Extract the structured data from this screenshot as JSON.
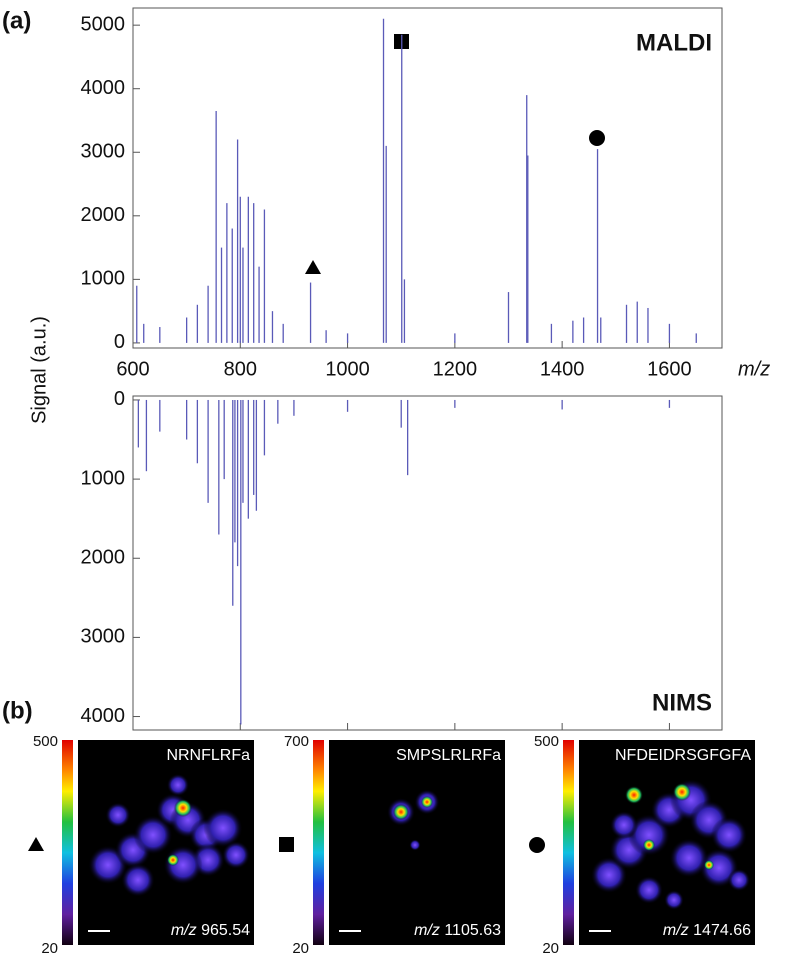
{
  "chart_data": [
    {
      "type": "spectrum",
      "title": "MALDI",
      "x_label": "m/z",
      "color": "#5a5ab8",
      "x": [
        607,
        620,
        650,
        700,
        720,
        740,
        755,
        765,
        775,
        785,
        795,
        800,
        805,
        815,
        825,
        835,
        845,
        860,
        880,
        931,
        960,
        1000,
        1067,
        1072,
        1101,
        1106,
        1200,
        1300,
        1334,
        1336,
        1380,
        1420,
        1440,
        1466,
        1472,
        1520,
        1540,
        1560,
        1600,
        1650
      ],
      "values": [
        900,
        300,
        250,
        400,
        600,
        900,
        3650,
        1500,
        2200,
        1800,
        3200,
        2300,
        1500,
        2300,
        2200,
        1200,
        2100,
        500,
        300,
        950,
        200,
        150,
        5100,
        3100,
        4850,
        1000,
        150,
        800,
        3900,
        2950,
        300,
        350,
        400,
        3050,
        400,
        600,
        650,
        550,
        300,
        150
      ],
      "xlim": [
        600,
        1698
      ],
      "xticks": [
        600,
        800,
        1000,
        1200,
        1400,
        1600
      ],
      "ylim": [
        -80,
        5270
      ],
      "yticks": [
        0,
        1000,
        2000,
        3000,
        4000,
        5000
      ],
      "inverted": false
    },
    {
      "type": "spectrum",
      "title": "NIMS",
      "color": "#5a5ab8",
      "x": [
        610,
        625,
        650,
        700,
        720,
        740,
        760,
        770,
        786,
        790,
        795,
        801,
        805,
        815,
        825,
        830,
        845,
        870,
        900,
        1000,
        1100,
        1112,
        1200,
        1400,
        1600
      ],
      "values": [
        600,
        900,
        400,
        500,
        800,
        1300,
        1700,
        1000,
        2600,
        1800,
        2100,
        4100,
        1300,
        1500,
        1200,
        1400,
        700,
        300,
        200,
        150,
        350,
        950,
        100,
        120,
        100
      ],
      "xlim": [
        600,
        1698
      ],
      "xticks": [
        600,
        800,
        1000,
        1200,
        1400,
        1600
      ],
      "xtick_labels": false,
      "ylim": [
        -50,
        4170
      ],
      "yticks": [
        0,
        1000,
        2000,
        3000,
        4000
      ],
      "inverted": true
    }
  ],
  "y_label": "Signal (a.u.)",
  "panel_a": "(a)",
  "panel_b": "(b)",
  "images": [
    {
      "peptide": "NRNFLRFa",
      "mz_unit": "m/z",
      "mz": 965.54,
      "scale_max": 500,
      "scale_min": 20
    },
    {
      "peptide": "SMPSLRLRFa",
      "mz_unit": "m/z",
      "mz": 1105.63,
      "scale_max": 700,
      "scale_min": 20
    },
    {
      "peptide": "NFDEIDRSGFGFA",
      "mz_unit": "m/z",
      "mz": 1474.66,
      "scale_max": 500,
      "scale_min": 20
    }
  ]
}
